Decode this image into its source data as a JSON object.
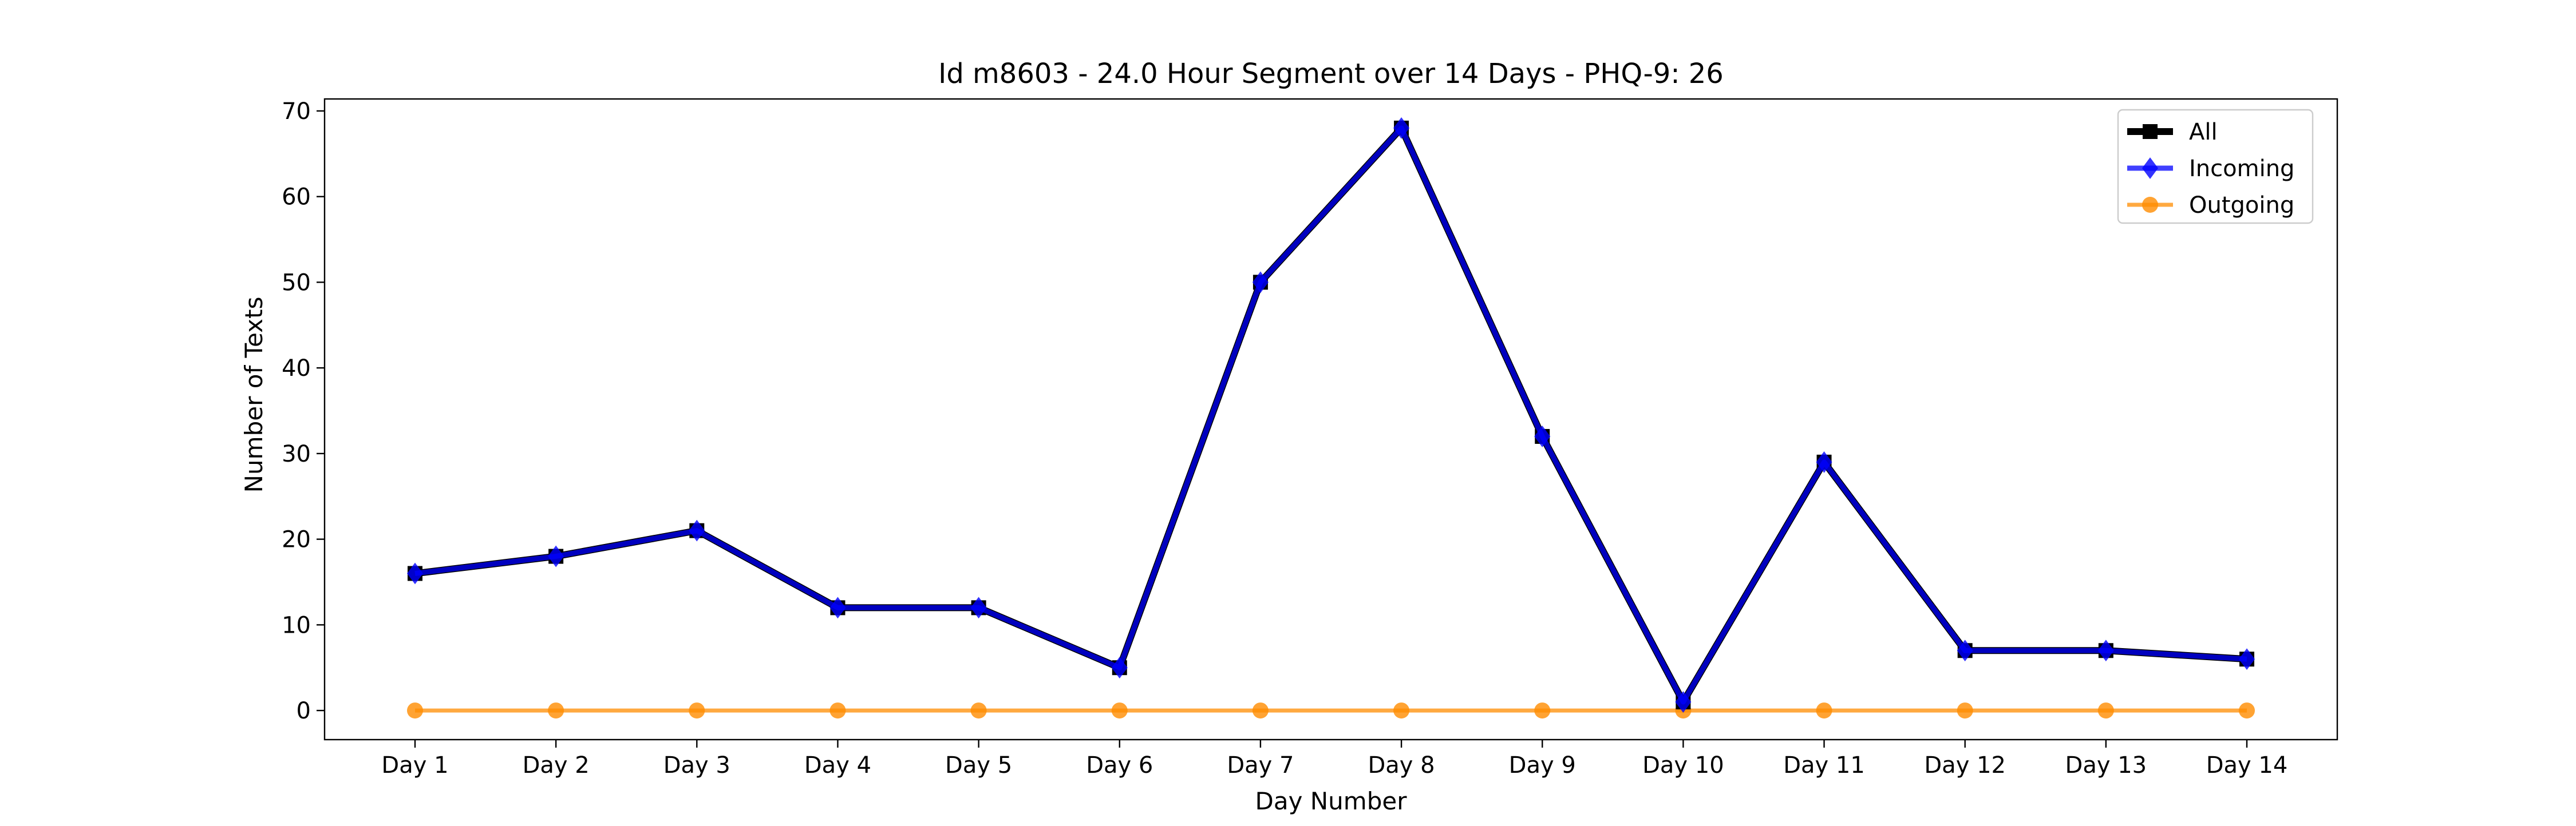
{
  "chart_data": {
    "type": "line",
    "title": "Id m8603 - 24.0 Hour Segment over 14 Days - PHQ-9: 26",
    "xlabel": "Day Number",
    "ylabel": "Number of Texts",
    "categories": [
      "Day 1",
      "Day 2",
      "Day 3",
      "Day 4",
      "Day 5",
      "Day 6",
      "Day 7",
      "Day 8",
      "Day 9",
      "Day 10",
      "Day 11",
      "Day 12",
      "Day 13",
      "Day 14"
    ],
    "ylim": [
      -3.4,
      71.4
    ],
    "yticks": [
      0,
      10,
      20,
      30,
      40,
      50,
      60,
      70
    ],
    "grid": false,
    "legend_position": "top-right",
    "series": [
      {
        "name": "All",
        "color": "#000000",
        "marker": "square",
        "values": [
          16,
          18,
          21,
          12,
          12,
          5,
          50,
          68,
          32,
          1,
          29,
          7,
          7,
          6
        ]
      },
      {
        "name": "Incoming",
        "color": "#0000ff",
        "marker": "diamond",
        "values": [
          16,
          18,
          21,
          12,
          12,
          5,
          50,
          68,
          32,
          1,
          29,
          7,
          7,
          6
        ]
      },
      {
        "name": "Outgoing",
        "color": "#ff8c00",
        "marker": "circle",
        "values": [
          0,
          0,
          0,
          0,
          0,
          0,
          0,
          0,
          0,
          0,
          0,
          0,
          0,
          0
        ]
      }
    ]
  }
}
